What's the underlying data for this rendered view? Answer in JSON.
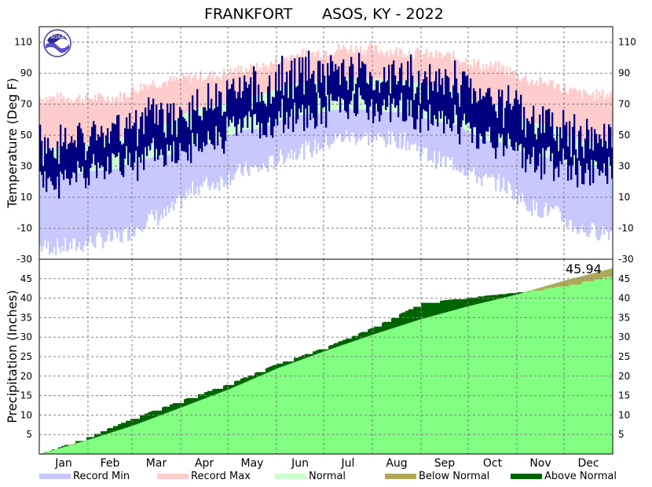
{
  "chart_data": [
    {
      "type": "area",
      "title_station": "FRANKFORT",
      "title_network": "ASOS, KY - 2022",
      "ylabel": "Temperature (Deg F)",
      "ylim": [
        -30,
        120
      ],
      "ytick_values": [
        -10,
        10,
        30,
        50,
        70,
        90,
        110
      ],
      "grid": true,
      "record_max_monthly": [
        74,
        74,
        84,
        88,
        93,
        102,
        106,
        104,
        101,
        94,
        84,
        76
      ],
      "record_min_monthly": [
        -22,
        -17,
        -3,
        18,
        28,
        40,
        49,
        47,
        33,
        20,
        2,
        -12
      ],
      "normal_high_monthly": [
        42,
        47,
        57,
        68,
        76,
        84,
        87,
        86,
        80,
        69,
        57,
        46
      ],
      "normal_low_monthly": [
        25,
        28,
        36,
        45,
        54,
        63,
        67,
        65,
        58,
        46,
        36,
        29
      ],
      "observed_high_monthly": [
        44,
        52,
        60,
        70,
        78,
        90,
        90,
        87,
        84,
        71,
        60,
        47
      ],
      "observed_low_monthly": [
        22,
        30,
        36,
        45,
        56,
        64,
        69,
        67,
        58,
        43,
        34,
        25
      ]
    },
    {
      "type": "area",
      "ylabel": "Precipitation (Inches)",
      "ylim": [
        0,
        50
      ],
      "ytick_values": [
        5,
        10,
        15,
        20,
        25,
        30,
        35,
        40,
        45
      ],
      "grid": true,
      "final_total": "45.94",
      "normal_cumulative_month_start": [
        0,
        3.7,
        7.3,
        12.0,
        16.6,
        22.0,
        26.4,
        30.7,
        34.7,
        38.0,
        41.0,
        44.5,
        47.7
      ],
      "observed_cumulative_month_start": [
        0,
        4.5,
        9.2,
        13.8,
        18.0,
        23.2,
        27.3,
        32.5,
        38.8,
        40.2,
        41.5,
        43.2,
        45.94
      ]
    }
  ],
  "months": [
    "Jan",
    "Feb",
    "Mar",
    "Apr",
    "May",
    "Jun",
    "Jul",
    "Aug",
    "Sep",
    "Oct",
    "Nov",
    "Dec"
  ],
  "legend": [
    {
      "label": "Record Min",
      "color": "#c8c8ff"
    },
    {
      "label": "Record Max",
      "color": "#ffcccc"
    },
    {
      "label": "Normal",
      "color": "#ccffcc"
    },
    {
      "label": "Below Normal",
      "color": "#b0a858"
    },
    {
      "label": "Above Normal",
      "color": "#006400"
    }
  ],
  "colors": {
    "record_max": "#ffcccc",
    "record_min": "#c8c8ff",
    "normal": "#ccffcc",
    "observed": "#000080",
    "precip_normal": "#80ff80",
    "above_normal": "#006400",
    "below_normal": "#b0a858"
  },
  "logo_text": "NOAA"
}
